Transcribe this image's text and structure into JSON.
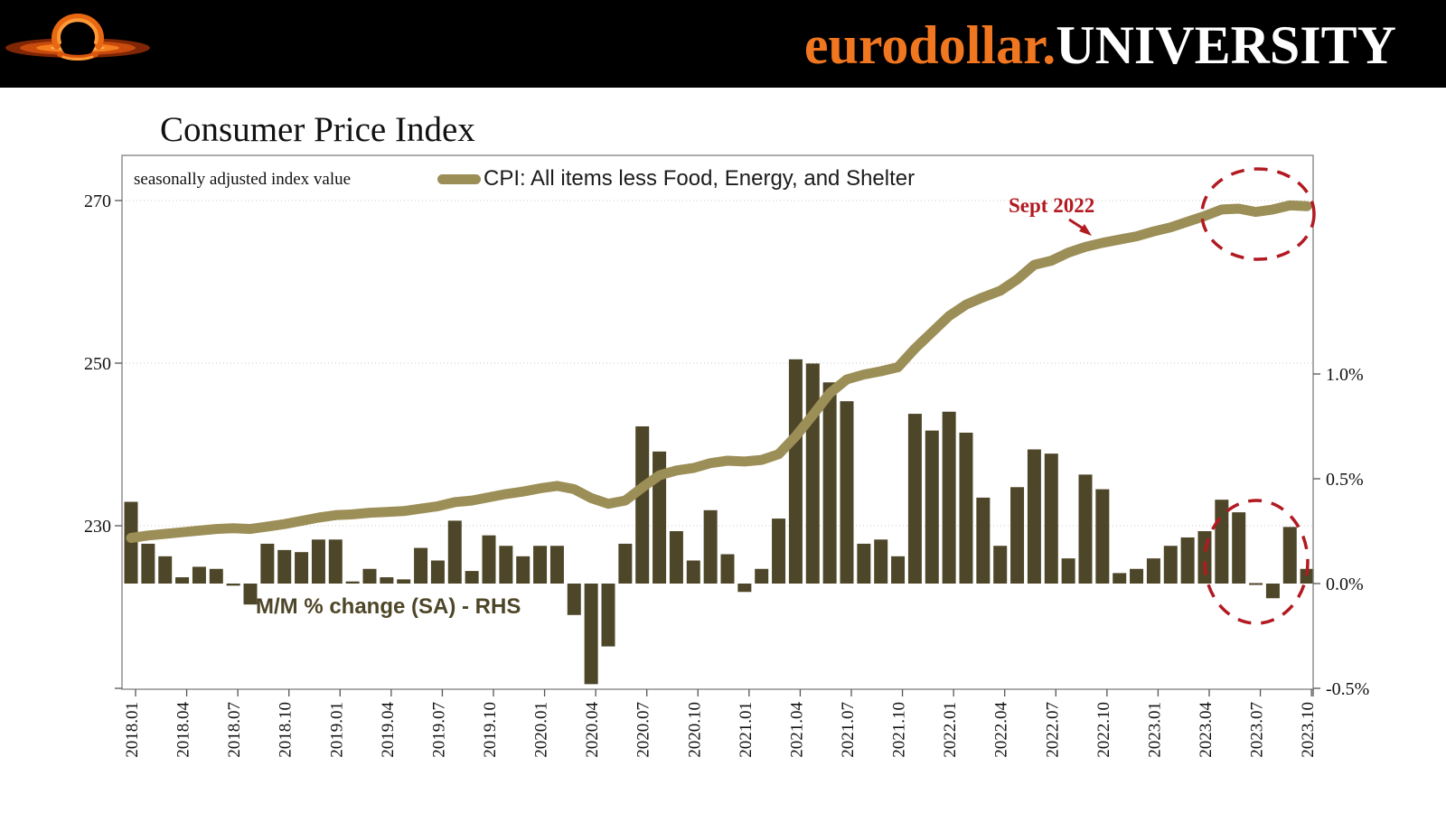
{
  "header": {
    "brand_orange": "eurodollar.",
    "brand_white": "UNIVERSITY"
  },
  "chart_data": {
    "type": "line+bar",
    "title": "Consumer Price Index",
    "axis_note": "seasonally adjusted index value",
    "legend_line_label": "CPI: All items less Food, Energy, and Shelter",
    "bar_series_label": "M/M % change (SA) - RHS",
    "annotation_text": "Sept 2022",
    "months": [
      "2018.01",
      "2018.02",
      "2018.03",
      "2018.04",
      "2018.05",
      "2018.06",
      "2018.07",
      "2018.08",
      "2018.09",
      "2018.10",
      "2018.11",
      "2018.12",
      "2019.01",
      "2019.02",
      "2019.03",
      "2019.04",
      "2019.05",
      "2019.06",
      "2019.07",
      "2019.08",
      "2019.09",
      "2019.10",
      "2019.11",
      "2019.12",
      "2020.01",
      "2020.02",
      "2020.03",
      "2020.04",
      "2020.05",
      "2020.06",
      "2020.07",
      "2020.08",
      "2020.09",
      "2020.10",
      "2020.11",
      "2020.12",
      "2021.01",
      "2021.02",
      "2021.03",
      "2021.04",
      "2021.05",
      "2021.06",
      "2021.07",
      "2021.08",
      "2021.09",
      "2021.10",
      "2021.11",
      "2021.12",
      "2022.01",
      "2022.02",
      "2022.03",
      "2022.04",
      "2022.05",
      "2022.06",
      "2022.07",
      "2022.08",
      "2022.09",
      "2022.10",
      "2022.11",
      "2022.12",
      "2023.01",
      "2023.02",
      "2023.03",
      "2023.04",
      "2023.05",
      "2023.06",
      "2023.07",
      "2023.08",
      "2023.09",
      "2023.10"
    ],
    "x_tick_labels": [
      "2018.01",
      "2018.04",
      "2018.07",
      "2018.10",
      "2019.01",
      "2019.04",
      "2019.07",
      "2019.10",
      "2020.01",
      "2020.04",
      "2020.07",
      "2020.10",
      "2021.01",
      "2021.04",
      "2021.07",
      "2021.10",
      "2022.01",
      "2022.04",
      "2022.07",
      "2022.10",
      "2023.01",
      "2023.04",
      "2023.07"
    ],
    "series": [
      {
        "name": "CPI: All items less Food, Energy, and Shelter",
        "axis": "left",
        "type": "line",
        "values": [
          228.5,
          228.8,
          229.0,
          229.2,
          229.4,
          229.6,
          229.7,
          229.6,
          229.9,
          230.2,
          230.6,
          231.0,
          231.3,
          231.4,
          231.6,
          231.7,
          231.8,
          232.1,
          232.4,
          232.9,
          233.1,
          233.5,
          233.9,
          234.2,
          234.6,
          234.9,
          234.5,
          233.4,
          232.7,
          233.1,
          234.7,
          236.2,
          236.8,
          237.1,
          237.7,
          238.0,
          237.9,
          238.1,
          238.8,
          241.0,
          243.6,
          246.3,
          248.0,
          248.6,
          249.0,
          249.5,
          251.8,
          253.8,
          255.8,
          257.2,
          258.1,
          258.9,
          260.3,
          262.1,
          262.6,
          263.6,
          264.3,
          264.8,
          265.2,
          265.6,
          266.2,
          266.7,
          267.4,
          268.1,
          268.9,
          269.0,
          268.6,
          268.9,
          269.4,
          269.3
        ]
      },
      {
        "name": "M/M % change (SA) - RHS",
        "axis": "right",
        "type": "bar",
        "values": [
          0.39,
          0.19,
          0.13,
          0.03,
          0.08,
          0.07,
          -0.01,
          -0.1,
          0.19,
          0.16,
          0.15,
          0.21,
          0.21,
          0.01,
          0.07,
          0.03,
          0.02,
          0.17,
          0.11,
          0.3,
          0.06,
          0.23,
          0.18,
          0.13,
          0.18,
          0.18,
          -0.15,
          -0.48,
          -0.3,
          0.19,
          0.75,
          0.63,
          0.25,
          0.11,
          0.35,
          0.14,
          -0.04,
          0.07,
          0.31,
          1.07,
          1.05,
          0.96,
          0.87,
          0.19,
          0.21,
          0.13,
          0.81,
          0.73,
          0.82,
          0.72,
          0.41,
          0.18,
          0.46,
          0.64,
          0.62,
          0.12,
          0.52,
          0.45,
          0.05,
          0.07,
          0.12,
          0.18,
          0.22,
          0.25,
          0.4,
          0.34,
          0.0,
          -0.07,
          0.27,
          0.07
        ]
      }
    ],
    "left_axis": {
      "ticks": [
        {
          "label": "270",
          "value": 270
        },
        {
          "label": "250",
          "value": 250
        },
        {
          "label": "230",
          "value": 230
        },
        {
          "label": "",
          "value": 210
        }
      ],
      "range": [
        210,
        275.5
      ],
      "gridlines": true
    },
    "right_axis": {
      "ticks": [
        {
          "label": "1.0%",
          "value": 1.0
        },
        {
          "label": "0.5%",
          "value": 0.5
        },
        {
          "label": "0.0%",
          "value": 0.0
        },
        {
          "label": "-0.5%",
          "value": -0.5
        }
      ],
      "range": [
        -0.5,
        2.05
      ]
    },
    "colors": {
      "line": "#9c8e57",
      "bars": "#4e4628",
      "annotation": "#b11a21",
      "grid": "#c9c9c9",
      "border": "#808080",
      "brand_orange": "#f0761f"
    }
  }
}
